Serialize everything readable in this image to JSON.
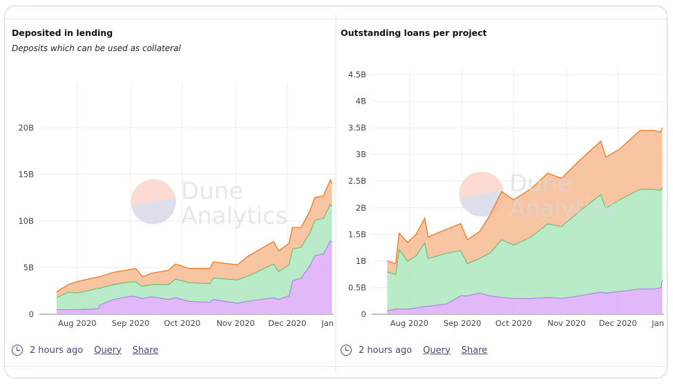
{
  "colors": {
    "orange_fill": "#f7bb92",
    "orange_line": "#f0873a",
    "green_fill": "#aee8bf",
    "green_line": "#3fc46c",
    "purple_fill": "#dcadf7",
    "purple_line": "#a56cf0",
    "grid": "#ececf0"
  },
  "watermark": {
    "line1": "Dune",
    "line2": "Analytics"
  },
  "footer": {
    "time": "2 hours ago",
    "query": "Query",
    "share": "Share",
    "icon": "clock-icon"
  },
  "chart_data": [
    {
      "type": "area",
      "stacked": true,
      "title": "Deposited in lending",
      "subtitle": "Deposits which can be used as collateral",
      "xlim": [
        "2020-07-10",
        "2020-12-28"
      ],
      "ylim": [
        0,
        23
      ],
      "yticks": [
        {
          "v": 0,
          "label": "0"
        },
        {
          "v": 5,
          "label": "5B"
        },
        {
          "v": 10,
          "label": "10B"
        },
        {
          "v": 15,
          "label": "15B"
        },
        {
          "v": 20,
          "label": "20B"
        }
      ],
      "xticks": [
        {
          "d": "2020-08-01",
          "label": "Aug 2020"
        },
        {
          "d": "2020-09-01",
          "label": "Sep 2020"
        },
        {
          "d": "2020-10-01",
          "label": "Oct 2020"
        },
        {
          "d": "2020-11-01",
          "label": "Nov 2020"
        },
        {
          "d": "2020-12-01",
          "label": "Dec 2020"
        },
        {
          "d": "2021-01-01",
          "label": "Jan"
        }
      ],
      "grid": true,
      "x": [
        "2020-07-20",
        "2020-07-27",
        "2020-08-01",
        "2020-08-13",
        "2020-08-14",
        "2020-08-22",
        "2020-09-01",
        "2020-09-04",
        "2020-09-08",
        "2020-09-13",
        "2020-09-23",
        "2020-09-27",
        "2020-10-05",
        "2020-10-17",
        "2020-10-19",
        "2020-11-02",
        "2020-11-08",
        "2020-11-23",
        "2020-11-26",
        "2020-12-02",
        "2020-12-04",
        "2020-12-09",
        "2020-12-14",
        "2020-12-17",
        "2020-12-22",
        "2020-12-26",
        "2020-12-27"
      ],
      "series": [
        {
          "color": "purple",
          "values": [
            0.5,
            0.5,
            0.5,
            0.6,
            1.0,
            1.6,
            1.95,
            1.9,
            1.7,
            1.9,
            1.6,
            1.8,
            1.4,
            1.3,
            1.6,
            1.2,
            1.4,
            1.8,
            1.6,
            2.0,
            3.6,
            3.9,
            5.2,
            6.3,
            6.5,
            7.9,
            7.8
          ]
        },
        {
          "color": "green",
          "values": [
            1.3,
            1.9,
            1.8,
            2.2,
            1.8,
            1.6,
            1.55,
            1.6,
            1.3,
            1.3,
            1.6,
            2.0,
            2.0,
            2.0,
            2.3,
            2.5,
            2.7,
            3.6,
            3.0,
            3.3,
            3.4,
            3.3,
            3.5,
            3.8,
            3.8,
            3.9,
            3.8
          ]
        },
        {
          "color": "orange",
          "values": [
            0.6,
            0.8,
            1.2,
            1.2,
            1.2,
            1.3,
            1.3,
            1.4,
            1.0,
            1.2,
            1.5,
            1.6,
            1.5,
            1.6,
            1.7,
            1.6,
            2.1,
            2.4,
            2.2,
            2.3,
            2.3,
            2.1,
            2.3,
            2.4,
            2.4,
            2.6,
            2.4
          ]
        }
      ]
    },
    {
      "type": "area",
      "stacked": true,
      "title": "Outstanding loans per project",
      "xlim": [
        "2020-07-10",
        "2020-12-28"
      ],
      "ylim": [
        0,
        4.6
      ],
      "yticks": [
        {
          "v": 0,
          "label": "0"
        },
        {
          "v": 0.5,
          "label": "0.5B"
        },
        {
          "v": 1,
          "label": "1B"
        },
        {
          "v": 1.5,
          "label": "1.5B"
        },
        {
          "v": 2,
          "label": "2B"
        },
        {
          "v": 2.5,
          "label": "2.5B"
        },
        {
          "v": 3,
          "label": "3B"
        },
        {
          "v": 3.5,
          "label": "3.5B"
        },
        {
          "v": 4,
          "label": "4B"
        },
        {
          "v": 4.5,
          "label": "4.5B"
        }
      ],
      "xticks": [
        {
          "d": "2020-08-01",
          "label": "Aug 2020"
        },
        {
          "d": "2020-09-01",
          "label": "Sep 2020"
        },
        {
          "d": "2020-10-01",
          "label": "Oct 2020"
        },
        {
          "d": "2020-11-01",
          "label": "Nov 2020"
        },
        {
          "d": "2020-12-01",
          "label": "Dec 2020"
        },
        {
          "d": "2021-01-01",
          "label": "Jan"
        }
      ],
      "grid": true,
      "x": [
        "2020-07-19",
        "2020-07-24",
        "2020-07-26",
        "2020-07-31",
        "2020-08-05",
        "2020-08-10",
        "2020-08-12",
        "2020-08-23",
        "2020-08-31",
        "2020-09-04",
        "2020-09-11",
        "2020-09-17",
        "2020-09-24",
        "2020-10-01",
        "2020-10-11",
        "2020-10-21",
        "2020-10-29",
        "2020-11-09",
        "2020-11-21",
        "2020-11-24",
        "2020-12-02",
        "2020-12-14",
        "2020-12-22",
        "2020-12-26",
        "2020-12-27"
      ],
      "series": [
        {
          "color": "purple",
          "values": [
            0.07,
            0.1,
            0.1,
            0.1,
            0.12,
            0.15,
            0.15,
            0.2,
            0.35,
            0.35,
            0.4,
            0.35,
            0.32,
            0.3,
            0.3,
            0.32,
            0.3,
            0.35,
            0.42,
            0.4,
            0.43,
            0.48,
            0.48,
            0.5,
            0.65
          ]
        },
        {
          "color": "green",
          "values": [
            0.73,
            0.65,
            1.12,
            0.9,
            0.98,
            1.2,
            0.9,
            0.95,
            0.85,
            0.6,
            0.65,
            0.8,
            1.08,
            1.0,
            1.15,
            1.38,
            1.35,
            1.6,
            1.83,
            1.6,
            1.72,
            1.87,
            1.87,
            1.83,
            1.73
          ]
        },
        {
          "color": "orange",
          "values": [
            0.2,
            0.2,
            0.3,
            0.35,
            0.4,
            0.45,
            0.4,
            0.45,
            0.5,
            0.45,
            0.5,
            0.7,
            0.9,
            0.85,
            0.9,
            0.95,
            0.9,
            0.95,
            1.0,
            0.95,
            0.95,
            1.1,
            1.1,
            1.09,
            1.12
          ]
        }
      ]
    }
  ]
}
